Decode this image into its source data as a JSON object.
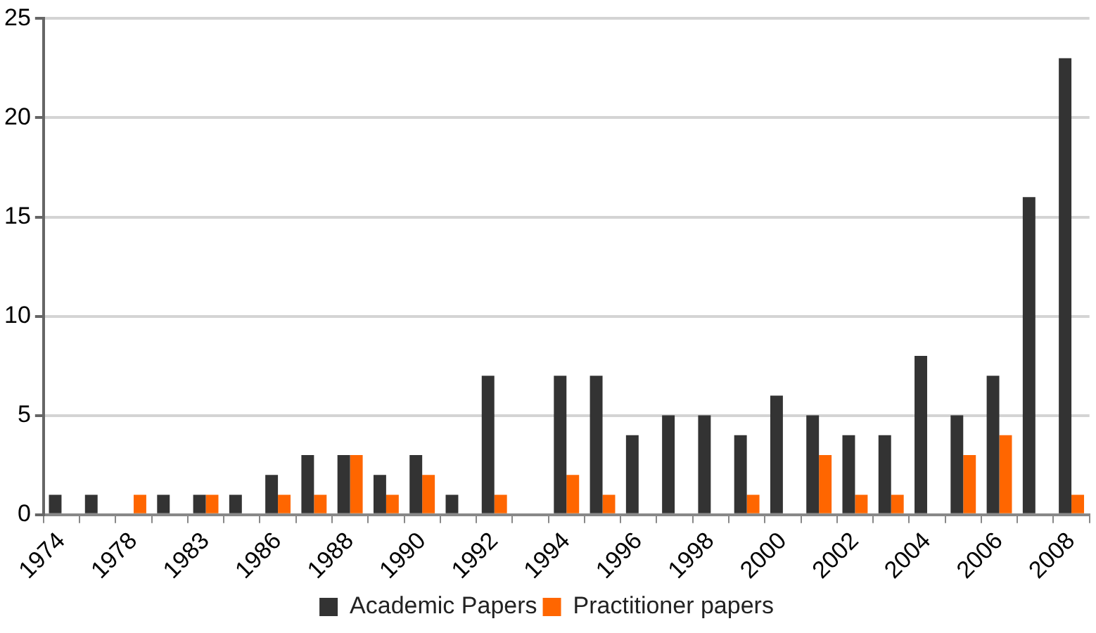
{
  "chart_data": {
    "type": "bar",
    "categories": [
      "1974",
      null,
      "1978",
      null,
      "1983",
      null,
      "1986",
      null,
      "1988",
      null,
      "1990",
      null,
      "1992",
      null,
      "1994",
      null,
      "1996",
      null,
      "1998",
      null,
      "2000",
      null,
      "2002",
      null,
      "2004",
      null,
      "2006",
      null,
      "2008"
    ],
    "series": [
      {
        "name": "Academic Papers",
        "color": "#333333",
        "values": [
          1,
          1,
          0,
          1,
          1,
          1,
          2,
          3,
          3,
          2,
          3,
          1,
          7,
          0,
          7,
          7,
          4,
          5,
          5,
          4,
          6,
          5,
          4,
          4,
          8,
          5,
          7,
          16,
          23
        ]
      },
      {
        "name": "Practitioner papers",
        "color": "#ff6600",
        "values": [
          0,
          0,
          1,
          0,
          1,
          0,
          1,
          1,
          3,
          1,
          2,
          0,
          1,
          0,
          2,
          1,
          0,
          0,
          0,
          1,
          0,
          3,
          1,
          1,
          0,
          3,
          4,
          0,
          1
        ]
      }
    ],
    "ylim": [
      0,
      25
    ],
    "yticks": [
      0,
      5,
      10,
      15,
      20,
      25
    ],
    "grid": "y",
    "legend": "bottom"
  }
}
